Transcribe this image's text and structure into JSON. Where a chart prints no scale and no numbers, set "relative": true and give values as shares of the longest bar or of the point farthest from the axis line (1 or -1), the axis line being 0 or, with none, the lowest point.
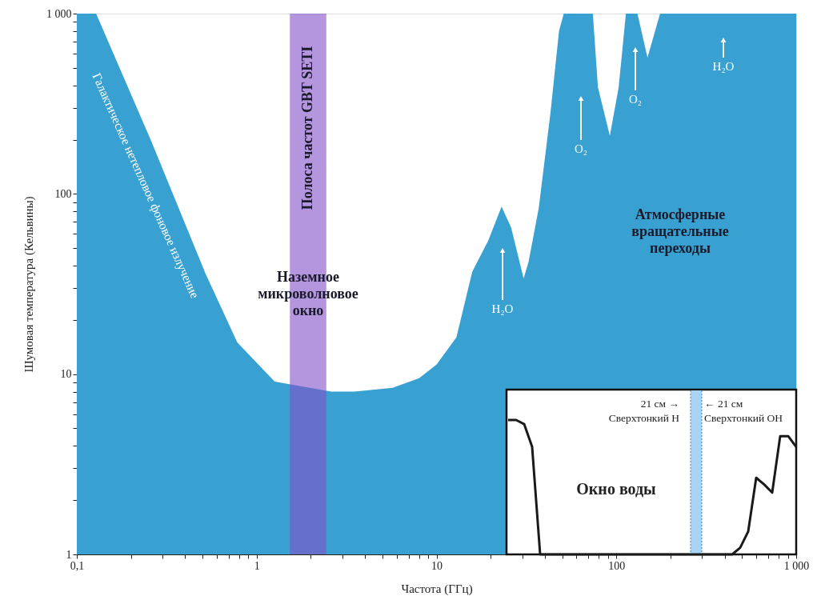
{
  "chart_data": [
    {
      "type": "area",
      "xlabel": "Частота (ГГц)",
      "ylabel": "Шумовая температура (Кельвины)",
      "log": "xy",
      "grid": false,
      "xlim": [
        0.1,
        1000
      ],
      "ylim": [
        1,
        1000
      ],
      "xticks": [
        {
          "value": 0.1,
          "label": "0,1"
        },
        {
          "value": 0.2,
          "label": null
        },
        {
          "value": 0.3,
          "label": null
        },
        {
          "value": 0.4,
          "label": null
        },
        {
          "value": 0.5,
          "label": null
        },
        {
          "value": 0.6,
          "label": null
        },
        {
          "value": 0.7,
          "label": null
        },
        {
          "value": 0.8,
          "label": null
        },
        {
          "value": 0.9,
          "label": null
        },
        1,
        {
          "value": 2,
          "label": null
        },
        {
          "value": 3,
          "label": null
        },
        {
          "value": 4,
          "label": null
        },
        {
          "value": 5,
          "label": null
        },
        {
          "value": 6,
          "label": null
        },
        {
          "value": 7,
          "label": null
        },
        {
          "value": 8,
          "label": null
        },
        {
          "value": 9,
          "label": null
        },
        10,
        {
          "value": 20,
          "label": null
        },
        {
          "value": 30,
          "label": null
        },
        {
          "value": 40,
          "label": null
        },
        {
          "value": 50,
          "label": null
        },
        {
          "value": 60,
          "label": null
        },
        {
          "value": 70,
          "label": null
        },
        {
          "value": 80,
          "label": null
        },
        {
          "value": 90,
          "label": null
        },
        100,
        {
          "value": 200,
          "label": null
        },
        {
          "value": 300,
          "label": null
        },
        {
          "value": 400,
          "label": null
        },
        {
          "value": 500,
          "label": null
        },
        {
          "value": 600,
          "label": null
        },
        {
          "value": 700,
          "label": null
        },
        {
          "value": 800,
          "label": null
        },
        {
          "value": 900,
          "label": null
        },
        {
          "value": 1000,
          "label": "1 000"
        }
      ],
      "yticks": [
        1,
        {
          "value": 2,
          "label": null
        },
        {
          "value": 3,
          "label": null
        },
        {
          "value": 4,
          "label": null
        },
        {
          "value": 5,
          "label": null
        },
        {
          "value": 6,
          "label": null
        },
        {
          "value": 7,
          "label": null
        },
        {
          "value": 8,
          "label": null
        },
        {
          "value": 9,
          "label": null
        },
        10,
        {
          "value": 20,
          "label": null
        },
        {
          "value": 30,
          "label": null
        },
        {
          "value": 40,
          "label": null
        },
        {
          "value": 50,
          "label": null
        },
        {
          "value": 60,
          "label": null
        },
        {
          "value": 70,
          "label": null
        },
        {
          "value": 80,
          "label": null
        },
        {
          "value": 90,
          "label": null
        },
        100,
        {
          "value": 200,
          "label": null
        },
        {
          "value": 300,
          "label": null
        },
        {
          "value": 400,
          "label": null
        },
        {
          "value": 500,
          "label": null
        },
        {
          "value": 600,
          "label": null
        },
        {
          "value": 700,
          "label": null
        },
        {
          "value": 800,
          "label": null
        },
        {
          "value": 900,
          "label": null
        },
        {
          "value": 1000,
          "label": "1 000"
        }
      ],
      "series": [
        {
          "color": "#38a1d1",
          "x": [
            0.1,
            0.128,
            0.26,
            0.52,
            0.78,
            1.26,
            2.6,
            3.5,
            5.7,
            8,
            10,
            12.9,
            15.8,
            19.4,
            23,
            26,
            30.5,
            32.5,
            37,
            43,
            48,
            51,
            70,
            74,
            79,
            92,
            103,
            113,
            131,
            149,
            175,
            1000
          ],
          "values": [
            1000,
            1000,
            195,
            36,
            15,
            9.1,
            8,
            8,
            8.4,
            9.5,
            11.3,
            16,
            37,
            55,
            85,
            65,
            34,
            42,
            83,
            280,
            800,
            1000,
            1000,
            1000,
            390,
            210,
            390,
            1000,
            1000,
            570,
            1000,
            1000
          ]
        }
      ],
      "bands": [
        {
          "axis": "x",
          "from": 1.53,
          "to": 2.44,
          "color": "#8250c8",
          "label": "Полоса частот GBT SETI"
        }
      ],
      "annotations": [
        "Галактическое нетепловое фоновое излучение",
        "Наземное\nмикроволновое\nокно",
        "Атмосферные\nвращательные\nпереходы",
        "H₂O",
        "O₂",
        "O₂",
        "H₂O"
      ]
    },
    {
      "type": "line",
      "relative": true,
      "categories": [
        null,
        null,
        null,
        null,
        null,
        null,
        null,
        null,
        null,
        null,
        null,
        null,
        null,
        null,
        null,
        null,
        null,
        null,
        null,
        null,
        null,
        null,
        null,
        null,
        null,
        null,
        null,
        null,
        null,
        null,
        null,
        null,
        null,
        null,
        null,
        null,
        null
      ],
      "series": [
        {
          "color": "#1a1a1a",
          "values": [
            1.0,
            1.0,
            0.97,
            0.8,
            0.0,
            0.0,
            0.0,
            0.0,
            0.0,
            0.0,
            0.0,
            0.0,
            0.0,
            0.0,
            0.0,
            0.0,
            0.0,
            0.0,
            0.0,
            0.0,
            0.0,
            0.0,
            0.0,
            0.0,
            0.0,
            0.0,
            0.0,
            0.0,
            0.0,
            0.05,
            0.17,
            0.57,
            0.52,
            0.46,
            0.88,
            0.88,
            0.8
          ]
        }
      ],
      "annotations": [
        "21 см  →\nСверхтонкий H",
        "←  21 см\nСверхтонкий OH",
        "Окно воды"
      ]
    }
  ]
}
